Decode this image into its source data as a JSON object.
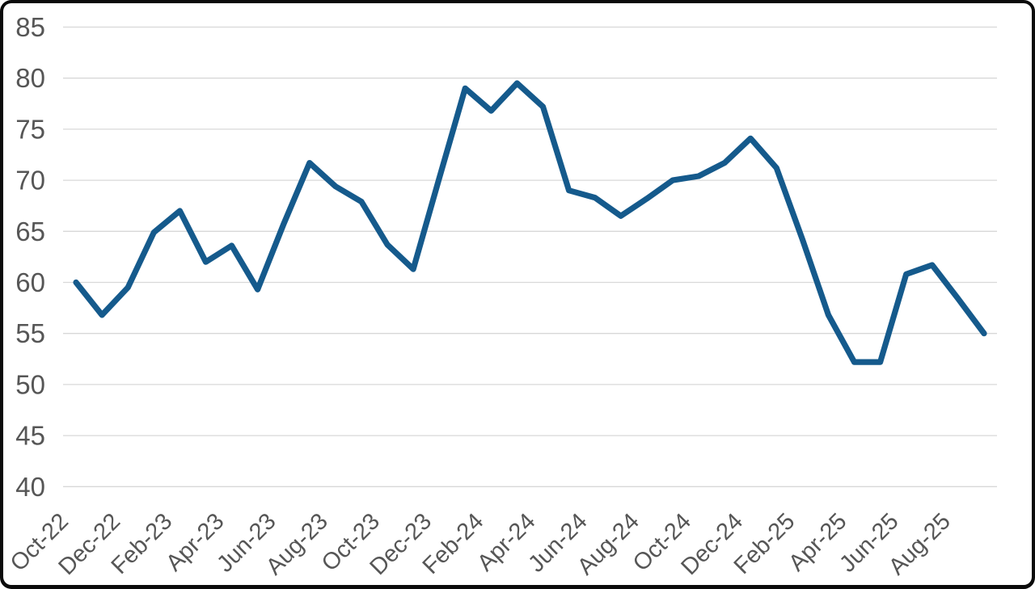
{
  "chart": {
    "accent_color": "#155A8C",
    "gridline_color": "#D8D8D8",
    "label_color": "#565656",
    "background_color": "#FFFFFF",
    "frame_color": "#0B0B0B"
  },
  "chart_data": {
    "type": "line",
    "title": "",
    "xlabel": "",
    "ylabel": "",
    "legend": "none",
    "grid": "horizontal",
    "ylim": [
      40,
      85
    ],
    "y_ticks": [
      85,
      80,
      75,
      70,
      65,
      60,
      55,
      50,
      45,
      40
    ],
    "x_tick_labels": [
      "Oct-22",
      "Dec-22",
      "Feb-23",
      "Apr-23",
      "Jun-23",
      "Aug-23",
      "Oct-23",
      "Dec-23",
      "Feb-24",
      "Apr-24",
      "Jun-24",
      "Aug-24",
      "Oct-24",
      "Dec-24",
      "Feb-25",
      "Apr-25",
      "Jun-25",
      "Aug-25"
    ],
    "x": [
      "Oct-22",
      "Nov-22",
      "Dec-22",
      "Jan-23",
      "Feb-23",
      "Mar-23",
      "Apr-23",
      "May-23",
      "Jun-23",
      "Jul-23",
      "Aug-23",
      "Sep-23",
      "Oct-23",
      "Nov-23",
      "Dec-23",
      "Jan-24",
      "Feb-24",
      "Mar-24",
      "Apr-24",
      "May-24",
      "Jun-24",
      "Jul-24",
      "Aug-24",
      "Sep-24",
      "Oct-24",
      "Nov-24",
      "Dec-24",
      "Jan-25",
      "Feb-25",
      "Mar-25",
      "Apr-25",
      "May-25",
      "Jun-25",
      "Jul-25",
      "Aug-25",
      "Sep-25"
    ],
    "series": [
      {
        "name": "",
        "values": [
          60.0,
          56.8,
          59.5,
          64.9,
          67.0,
          62.0,
          63.6,
          59.3,
          65.7,
          71.7,
          69.4,
          67.9,
          63.7,
          61.3,
          70.2,
          79.0,
          76.8,
          79.5,
          77.2,
          69.0,
          68.3,
          66.5,
          68.2,
          70.0,
          70.4,
          71.7,
          74.1,
          71.2,
          64.2,
          56.8,
          52.2,
          52.2,
          60.8,
          61.7,
          58.4,
          55.0
        ]
      }
    ]
  }
}
